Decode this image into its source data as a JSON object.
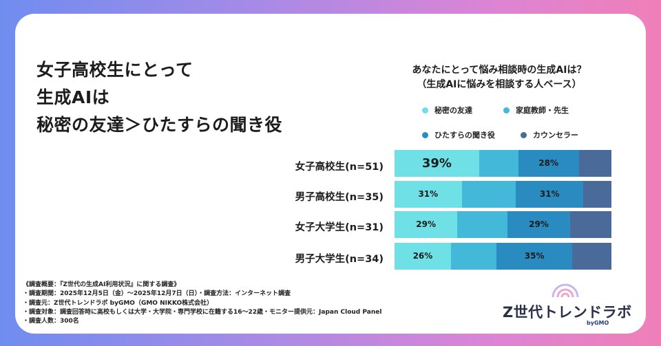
{
  "headline": [
    "女子高校生にとって",
    "生成AIは",
    "秘密の友達＞ひたすらの聞き役"
  ],
  "chart_data": {
    "type": "bar",
    "stacked": true,
    "orientation": "horizontal",
    "title": "あなたにとって悩み相談時の生成AIは？",
    "subtitle": "（生成AIに悩みを相談する人ベース）",
    "categories": [
      "女子高校生(n=51)",
      "男子高校生(n=35)",
      "女子大学生(n=31)",
      "男子大学生(n=34)"
    ],
    "series": [
      {
        "name": "秘密の友達",
        "color": "#6ee0e6",
        "values": [
          39,
          31,
          29,
          26
        ],
        "labels": [
          "39%",
          "31%",
          "29%",
          "26%"
        ]
      },
      {
        "name": "家庭教師・先生",
        "color": "#44b8d8",
        "values": [
          18,
          25,
          23,
          21
        ],
        "labels": [
          "",
          "",
          "",
          ""
        ]
      },
      {
        "name": "ひたすらの聞き役",
        "color": "#2a8bc0",
        "values": [
          28,
          31,
          29,
          35
        ],
        "labels": [
          "28%",
          "31%",
          "29%",
          "35%"
        ]
      },
      {
        "name": "カウンセラー",
        "color": "#4a6a9a",
        "values": [
          15,
          13,
          19,
          18
        ],
        "labels": [
          "",
          "",
          "",
          ""
        ]
      }
    ],
    "xlim": [
      0,
      100
    ],
    "legend": "top"
  },
  "notes": [
    "《調査概要：『Z世代の生成AI利用状況』に関する調査》",
    "・調査期間：2025年12月5日（金）～2025年12月7日（日）・調査方法：インターネット調査",
    "・調査元：Z世代トレンドラボ byGMO（GMO NIKKO株式会社）",
    "・調査対象：調査回答時に高校もしくは大学・大学院・専門学校に在籍する16～22歳・モニター提供元：Japan Cloud Panel",
    "・調査人数：300名"
  ],
  "logo": {
    "name": "Z世代トレンドラボ",
    "by": "byGMO"
  }
}
